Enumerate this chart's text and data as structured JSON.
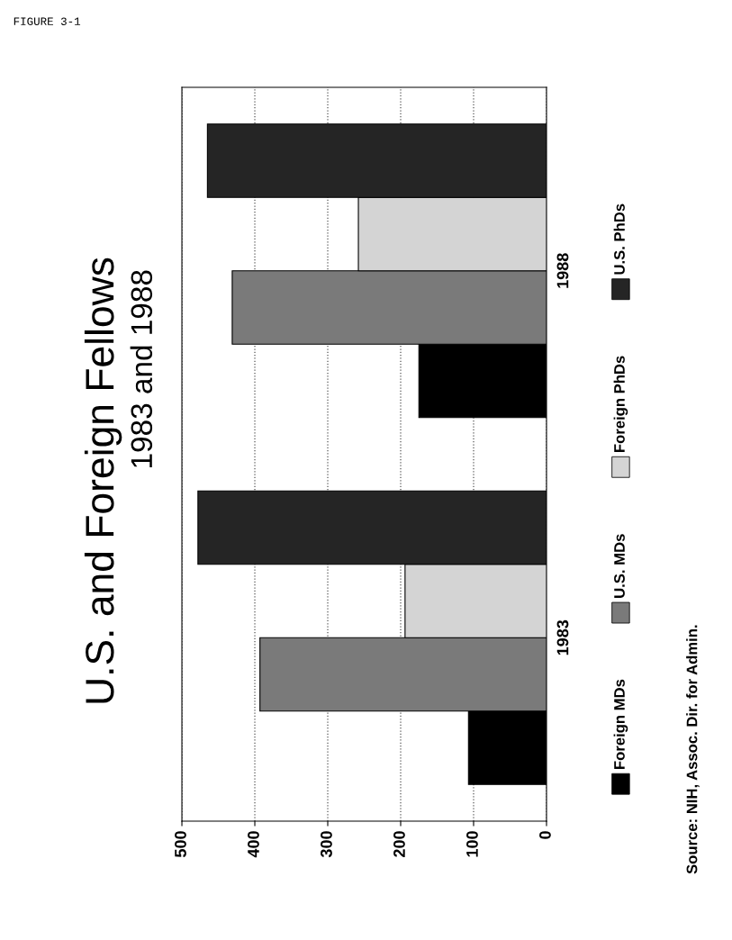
{
  "chart_data": {
    "type": "bar",
    "orientation": "horizontal",
    "title": "U.S. and Foreign Fellows",
    "subtitle": "1983 and 1988",
    "categories": [
      "1988",
      "1983"
    ],
    "series": [
      {
        "name": "Foreign MDs",
        "color": "#000000",
        "values": [
          175,
          107
        ]
      },
      {
        "name": "U.S. MDs",
        "color": "#7a7a7a",
        "values": [
          431,
          393
        ]
      },
      {
        "name": "Foreign PhDs",
        "color": "#d4d4d4",
        "values": [
          258,
          194
        ]
      },
      {
        "name": "U.S. PhDs",
        "color": "#252525",
        "values": [
          465,
          478
        ]
      }
    ],
    "xlim": [
      500,
      0
    ],
    "xticks": [
      500,
      400,
      300,
      200,
      100,
      0
    ],
    "grid": "x",
    "legend": "right",
    "annotations": [
      "FIGURE 3-1",
      "Source: NIH, Assoc. Dir. for Admin."
    ]
  }
}
